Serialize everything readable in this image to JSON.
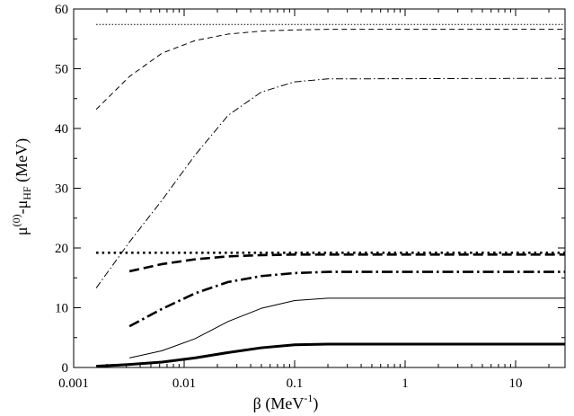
{
  "chart_data": {
    "type": "line",
    "title": "",
    "xlabel": {
      "main": "β (MeV",
      "sup": "-1",
      "close": ")"
    },
    "ylabel": {
      "mu": "μ",
      "sup": "(0)",
      "mid": "-μ",
      "sub": "HF",
      "unit": " (MeV)"
    },
    "x_scale": "log",
    "xlim": [
      0.001,
      28
    ],
    "ylim": [
      0,
      60
    ],
    "x_ticks": [
      {
        "value": 0.001,
        "label": "0.001"
      },
      {
        "value": 0.01,
        "label": "0.01"
      },
      {
        "value": 0.1,
        "label": "0.1"
      },
      {
        "value": 1,
        "label": "1"
      },
      {
        "value": 10,
        "label": "10"
      }
    ],
    "y_ticks": [
      {
        "value": 0,
        "label": "0"
      },
      {
        "value": 10,
        "label": "10"
      },
      {
        "value": 20,
        "label": "20"
      },
      {
        "value": 30,
        "label": "30"
      },
      {
        "value": 40,
        "label": "40"
      },
      {
        "value": 50,
        "label": "50"
      },
      {
        "value": 60,
        "label": "60"
      }
    ],
    "grid": false,
    "legend": "none",
    "series": [
      {
        "id": "thin-dotted",
        "style": {
          "width": 1,
          "dash": "1.5 2"
        },
        "points": [
          [
            0.0016,
            57.4
          ],
          [
            28,
            57.4
          ]
        ]
      },
      {
        "id": "thin-dashed",
        "style": {
          "width": 1,
          "dash": "6 4"
        },
        "points": [
          [
            0.0016,
            43.2
          ],
          [
            0.0032,
            48.7
          ],
          [
            0.0063,
            52.6
          ],
          [
            0.0125,
            54.7
          ],
          [
            0.025,
            55.8
          ],
          [
            0.05,
            56.3
          ],
          [
            0.1,
            56.5
          ],
          [
            0.2,
            56.6
          ],
          [
            28,
            56.6
          ]
        ]
      },
      {
        "id": "thin-dash-dot",
        "style": {
          "width": 1,
          "dash": "8 3 1.5 3"
        },
        "points": [
          [
            0.0016,
            13.3
          ],
          [
            0.0032,
            21.0
          ],
          [
            0.0063,
            28.0
          ],
          [
            0.0125,
            35.5
          ],
          [
            0.025,
            42.2
          ],
          [
            0.05,
            46.1
          ],
          [
            0.1,
            47.8
          ],
          [
            0.2,
            48.3
          ],
          [
            28,
            48.4
          ]
        ]
      },
      {
        "id": "thick-dotted",
        "style": {
          "width": 2.6,
          "dash": "2.5 4"
        },
        "points": [
          [
            0.0016,
            19.2
          ],
          [
            28,
            19.2
          ]
        ]
      },
      {
        "id": "thick-dashed",
        "style": {
          "width": 2.6,
          "dash": "11 5"
        },
        "points": [
          [
            0.0032,
            16.1
          ],
          [
            0.0063,
            17.3
          ],
          [
            0.0125,
            18.1
          ],
          [
            0.025,
            18.6
          ],
          [
            0.05,
            18.8
          ],
          [
            0.1,
            18.9
          ],
          [
            28,
            18.9
          ]
        ]
      },
      {
        "id": "thick-dash-dot",
        "style": {
          "width": 2.6,
          "dash": "12 4 2.5 4"
        },
        "points": [
          [
            0.0032,
            6.9
          ],
          [
            0.0063,
            9.8
          ],
          [
            0.0125,
            12.4
          ],
          [
            0.025,
            14.3
          ],
          [
            0.05,
            15.3
          ],
          [
            0.1,
            15.8
          ],
          [
            0.2,
            16.0
          ],
          [
            28,
            16.0
          ]
        ]
      },
      {
        "id": "thin-solid",
        "style": {
          "width": 1,
          "dash": ""
        },
        "points": [
          [
            0.0032,
            1.6
          ],
          [
            0.0063,
            2.8
          ],
          [
            0.0125,
            4.8
          ],
          [
            0.025,
            7.7
          ],
          [
            0.05,
            9.9
          ],
          [
            0.1,
            11.2
          ],
          [
            0.2,
            11.6
          ],
          [
            28,
            11.6
          ]
        ]
      },
      {
        "id": "thick-solid",
        "style": {
          "width": 3,
          "dash": ""
        },
        "points": [
          [
            0.0016,
            0.2
          ],
          [
            0.0032,
            0.5
          ],
          [
            0.0063,
            0.9
          ],
          [
            0.0125,
            1.6
          ],
          [
            0.025,
            2.5
          ],
          [
            0.05,
            3.3
          ],
          [
            0.1,
            3.8
          ],
          [
            0.2,
            3.9
          ],
          [
            28,
            3.9
          ]
        ]
      }
    ]
  }
}
